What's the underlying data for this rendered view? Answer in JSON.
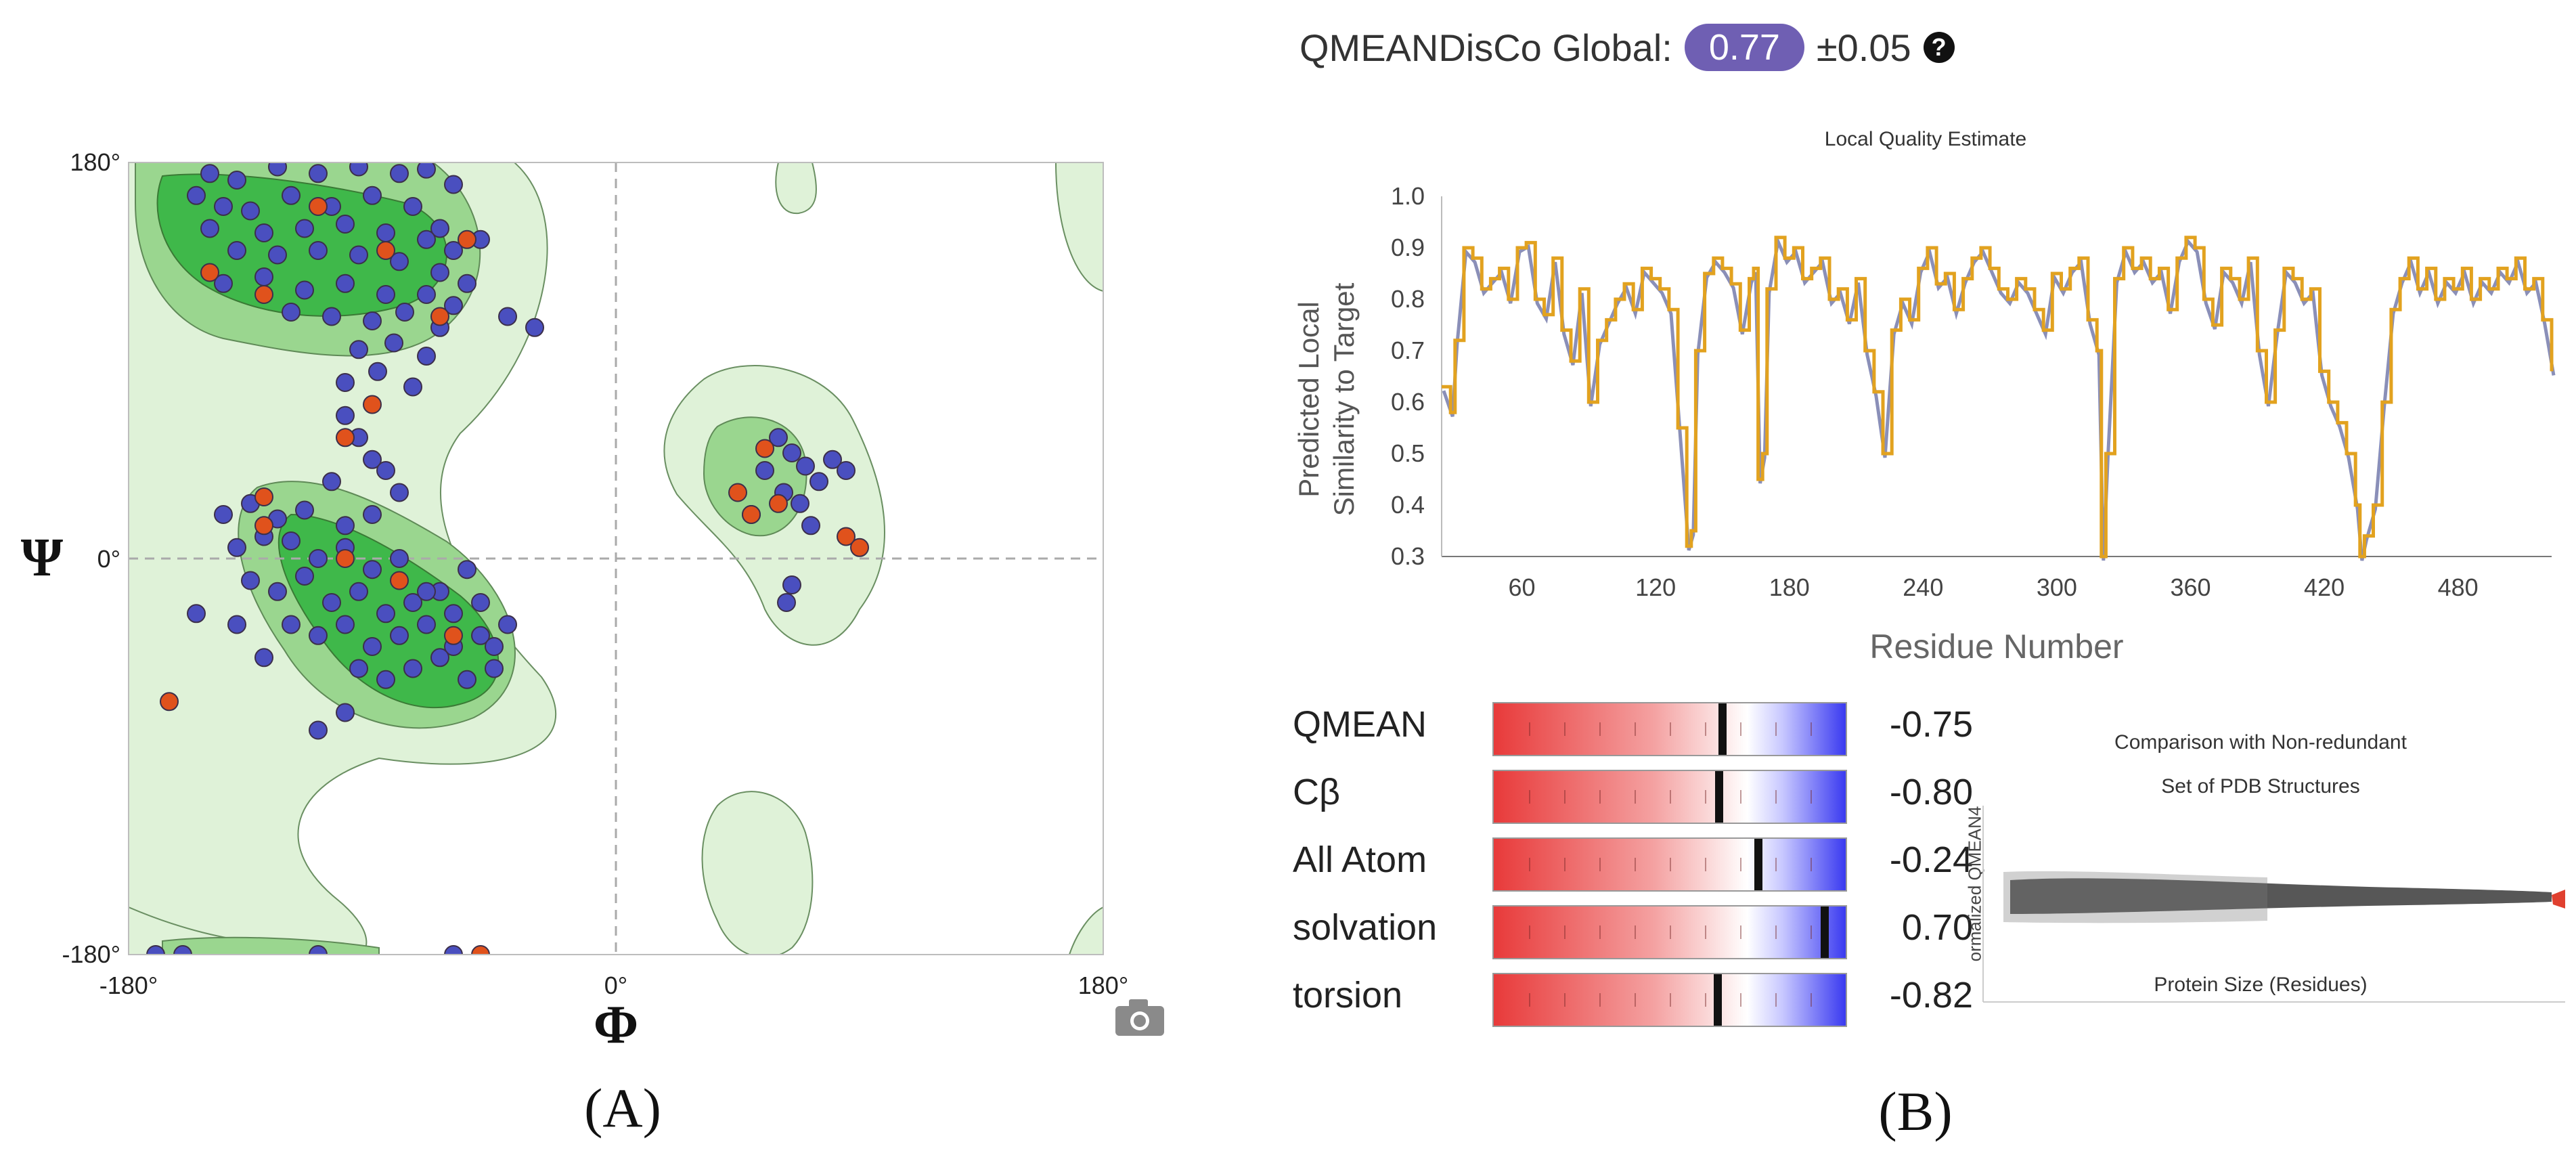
{
  "panel_labels": {
    "a": "(A)",
    "b": "(B)"
  },
  "ramachandran": {
    "x_ticks": [
      "-180°",
      "0°",
      "180°"
    ],
    "y_ticks": [
      "180°",
      "0°",
      "-180°"
    ],
    "x_symbol": "Φ",
    "y_symbol": "Ψ",
    "camera_icon": "camera-icon"
  },
  "qmean_global": {
    "label": "QMEANDisCo Global:",
    "value": "0.77",
    "error": "±0.05",
    "help_icon": "question-circle-icon",
    "badge_color": "#6f5fb3"
  },
  "local_quality": {
    "title": "Local Quality Estimate",
    "ylabel_line1": "Predicted Local",
    "ylabel_line2": "Similarity to Target",
    "xlabel": "Residue Number"
  },
  "scores": [
    {
      "name": "QMEAN",
      "value": "-0.75"
    },
    {
      "name": "Cβ",
      "value": "-0.80"
    },
    {
      "name": "All Atom",
      "value": "-0.24"
    },
    {
      "name": "solvation",
      "value": "0.70"
    },
    {
      "name": "torsion",
      "value": "-0.82"
    }
  ],
  "comparison": {
    "title_line1": "Comparison with Non-redundant",
    "title_line2": "Set of PDB Structures",
    "ylabel": "ormalized QMEAN4",
    "xlabel": "Protein Size (Residues)"
  },
  "colors": {
    "favored_dark": "#3fb84a",
    "favored_mid": "#9ad68f",
    "allowed_light": "#dff2d8",
    "residue_blue": "#4a4fbf",
    "residue_orange": "#e0521c",
    "line_orange": "#e2a21f",
    "line_gray": "#8a8fb8"
  },
  "chart_data": [
    {
      "type": "scatter",
      "name": "Ramachandran plot",
      "xlabel": "Φ",
      "ylabel": "Ψ",
      "xlim": [
        -180,
        180
      ],
      "ylim": [
        -180,
        180
      ],
      "x_ticks": [
        -180,
        0,
        180
      ],
      "y_ticks": [
        -180,
        0,
        180
      ],
      "grid": false,
      "series": [
        {
          "color": "blue",
          "points": [
            [
              -150,
              175
            ],
            [
              -140,
              172
            ],
            [
              -125,
              178
            ],
            [
              -110,
              175
            ],
            [
              -95,
              178
            ],
            [
              -80,
              175
            ],
            [
              -70,
              177
            ],
            [
              -60,
              170
            ],
            [
              -155,
              165
            ],
            [
              -145,
              160
            ],
            [
              -135,
              158
            ],
            [
              -120,
              165
            ],
            [
              -105,
              160
            ],
            [
              -90,
              165
            ],
            [
              -75,
              160
            ],
            [
              -65,
              150
            ],
            [
              -150,
              150
            ],
            [
              -130,
              148
            ],
            [
              -115,
              150
            ],
            [
              -100,
              152
            ],
            [
              -85,
              148
            ],
            [
              -70,
              145
            ],
            [
              -60,
              140
            ],
            [
              -50,
              145
            ],
            [
              -140,
              140
            ],
            [
              -125,
              138
            ],
            [
              -110,
              140
            ],
            [
              -95,
              138
            ],
            [
              -80,
              135
            ],
            [
              -65,
              130
            ],
            [
              -55,
              125
            ],
            [
              -145,
              125
            ],
            [
              -130,
              128
            ],
            [
              -115,
              122
            ],
            [
              -100,
              125
            ],
            [
              -85,
              120
            ],
            [
              -70,
              120
            ],
            [
              -60,
              115
            ],
            [
              -120,
              112
            ],
            [
              -105,
              110
            ],
            [
              -90,
              108
            ],
            [
              -78,
              112
            ],
            [
              -65,
              105
            ],
            [
              -95,
              95
            ],
            [
              -82,
              98
            ],
            [
              -70,
              92
            ],
            [
              -100,
              80
            ],
            [
              -88,
              85
            ],
            [
              -75,
              78
            ],
            [
              -40,
              110
            ],
            [
              -30,
              105
            ],
            [
              -100,
              65
            ],
            [
              -95,
              55
            ],
            [
              -90,
              45
            ],
            [
              -85,
              40
            ],
            [
              -80,
              30
            ],
            [
              -105,
              35
            ],
            [
              -145,
              20
            ],
            [
              -135,
              25
            ],
            [
              -125,
              18
            ],
            [
              -115,
              22
            ],
            [
              -100,
              15
            ],
            [
              -90,
              20
            ],
            [
              -140,
              5
            ],
            [
              -130,
              10
            ],
            [
              -120,
              8
            ],
            [
              -110,
              0
            ],
            [
              -100,
              5
            ],
            [
              -90,
              -5
            ],
            [
              -80,
              0
            ],
            [
              -135,
              -10
            ],
            [
              -125,
              -15
            ],
            [
              -115,
              -8
            ],
            [
              -105,
              -20
            ],
            [
              -95,
              -15
            ],
            [
              -85,
              -25
            ],
            [
              -75,
              -20
            ],
            [
              -65,
              -15
            ],
            [
              -120,
              -30
            ],
            [
              -110,
              -35
            ],
            [
              -100,
              -30
            ],
            [
              -90,
              -40
            ],
            [
              -80,
              -35
            ],
            [
              -70,
              -30
            ],
            [
              -60,
              -40
            ],
            [
              -50,
              -35
            ],
            [
              -95,
              -50
            ],
            [
              -85,
              -55
            ],
            [
              -75,
              -50
            ],
            [
              -65,
              -45
            ],
            [
              -55,
              -55
            ],
            [
              -45,
              -50
            ],
            [
              -140,
              -30
            ],
            [
              -155,
              -25
            ],
            [
              -130,
              -45
            ],
            [
              -100,
              -70
            ],
            [
              -110,
              -78
            ],
            [
              -70,
              -15
            ],
            [
              -60,
              -25
            ],
            [
              -50,
              -20
            ],
            [
              -40,
              -30
            ],
            [
              -45,
              -40
            ],
            [
              -55,
              -5
            ],
            [
              60,
              55
            ],
            [
              65,
              48
            ],
            [
              70,
              42
            ],
            [
              55,
              40
            ],
            [
              75,
              35
            ],
            [
              62,
              30
            ],
            [
              68,
              25
            ],
            [
              50,
              20
            ],
            [
              72,
              15
            ],
            [
              80,
              45
            ],
            [
              85,
              40
            ],
            [
              65,
              -12
            ],
            [
              63,
              -20
            ],
            [
              -170,
              -180
            ],
            [
              -160,
              -180
            ],
            [
              -110,
              -180
            ],
            [
              -60,
              -180
            ]
          ]
        },
        {
          "color": "orange",
          "points": [
            [
              -110,
              160
            ],
            [
              -85,
              140
            ],
            [
              -55,
              145
            ],
            [
              -150,
              130
            ],
            [
              -130,
              120
            ],
            [
              -65,
              110
            ],
            [
              -100,
              55
            ],
            [
              -90,
              70
            ],
            [
              -130,
              28
            ],
            [
              -130,
              15
            ],
            [
              -100,
              0
            ],
            [
              -80,
              -10
            ],
            [
              -60,
              -35
            ],
            [
              -165,
              -65
            ],
            [
              -50,
              -180
            ],
            [
              55,
              50
            ],
            [
              60,
              25
            ],
            [
              45,
              30
            ],
            [
              50,
              20
            ],
            [
              85,
              10
            ],
            [
              90,
              5
            ]
          ]
        }
      ]
    },
    {
      "type": "line",
      "name": "Local Quality Estimate",
      "title": "Local Quality Estimate",
      "xlabel": "Residue Number",
      "ylabel": "Predicted Local Similarity to Target",
      "xlim": [
        24,
        522
      ],
      "ylim": [
        0.3,
        1.0
      ],
      "x_ticks": [
        60,
        120,
        180,
        240,
        300,
        360,
        420,
        480
      ],
      "y_ticks": [
        0.3,
        0.4,
        0.5,
        0.6,
        0.7,
        0.8,
        0.9,
        1.0
      ],
      "x": [
        24,
        28,
        30,
        34,
        38,
        42,
        46,
        50,
        54,
        58,
        62,
        66,
        70,
        74,
        78,
        82,
        86,
        90,
        94,
        98,
        102,
        106,
        110,
        114,
        118,
        122,
        126,
        130,
        134,
        136,
        138,
        142,
        146,
        150,
        154,
        158,
        162,
        164,
        166,
        168,
        170,
        174,
        178,
        182,
        186,
        190,
        194,
        198,
        202,
        206,
        210,
        214,
        218,
        222,
        226,
        230,
        234,
        238,
        242,
        246,
        250,
        254,
        258,
        262,
        266,
        270,
        274,
        278,
        282,
        286,
        290,
        294,
        298,
        302,
        306,
        310,
        314,
        318,
        320,
        322,
        326,
        330,
        334,
        338,
        342,
        346,
        350,
        354,
        358,
        362,
        366,
        370,
        374,
        378,
        382,
        386,
        390,
        394,
        398,
        402,
        406,
        410,
        414,
        418,
        422,
        426,
        430,
        434,
        436,
        438,
        442,
        446,
        450,
        454,
        458,
        462,
        466,
        470,
        474,
        478,
        482,
        486,
        490,
        494,
        498,
        502,
        506,
        510,
        514,
        518,
        522
      ],
      "series": [
        {
          "name": "",
          "values": [
            0.63,
            0.58,
            0.72,
            0.9,
            0.88,
            0.82,
            0.84,
            0.86,
            0.8,
            0.9,
            0.91,
            0.8,
            0.77,
            0.88,
            0.74,
            0.68,
            0.82,
            0.6,
            0.72,
            0.76,
            0.8,
            0.83,
            0.78,
            0.86,
            0.84,
            0.82,
            0.78,
            0.55,
            0.32,
            0.35,
            0.7,
            0.85,
            0.88,
            0.86,
            0.83,
            0.74,
            0.84,
            0.86,
            0.45,
            0.5,
            0.82,
            0.92,
            0.88,
            0.9,
            0.84,
            0.86,
            0.88,
            0.8,
            0.82,
            0.76,
            0.84,
            0.7,
            0.62,
            0.5,
            0.74,
            0.8,
            0.76,
            0.86,
            0.9,
            0.83,
            0.85,
            0.78,
            0.84,
            0.88,
            0.9,
            0.86,
            0.82,
            0.8,
            0.84,
            0.82,
            0.78,
            0.74,
            0.85,
            0.82,
            0.86,
            0.88,
            0.76,
            0.7,
            0.3,
            0.5,
            0.84,
            0.9,
            0.86,
            0.88,
            0.84,
            0.86,
            0.78,
            0.88,
            0.92,
            0.9,
            0.8,
            0.75,
            0.86,
            0.84,
            0.8,
            0.88,
            0.7,
            0.6,
            0.74,
            0.86,
            0.84,
            0.8,
            0.82,
            0.66,
            0.6,
            0.56,
            0.5,
            0.4,
            0.3,
            0.34,
            0.4,
            0.6,
            0.78,
            0.84,
            0.88,
            0.82,
            0.86,
            0.8,
            0.84,
            0.82,
            0.86,
            0.8,
            0.84,
            0.82,
            0.86,
            0.84,
            0.88,
            0.82,
            0.84,
            0.76,
            0.66
          ]
        }
      ]
    },
    {
      "type": "bar",
      "name": "Z-scores",
      "categories": [
        "QMEAN",
        "Cβ",
        "All Atom",
        "solvation",
        "torsion"
      ],
      "values": [
        -0.75,
        -0.8,
        -0.24,
        0.7,
        -0.82
      ],
      "ylim": [
        -4,
        1
      ]
    }
  ]
}
